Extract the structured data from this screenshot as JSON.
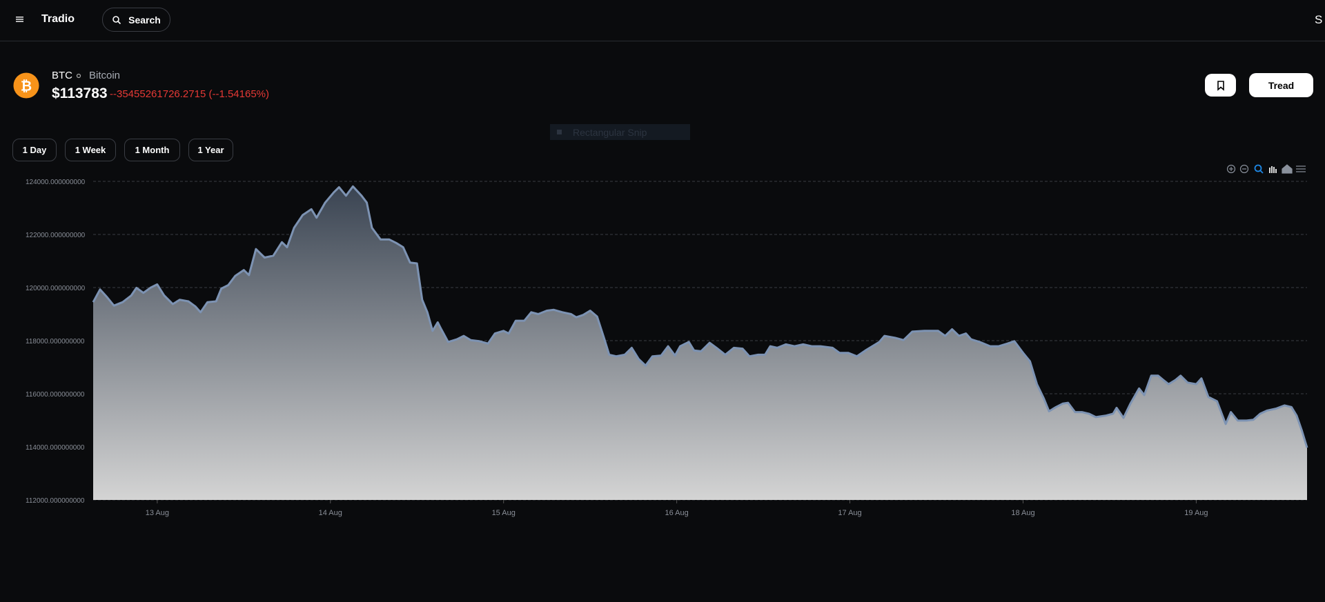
{
  "header": {
    "brand": "Tradio",
    "search": "Search",
    "user_initial": "S"
  },
  "asset": {
    "symbol": "BTC",
    "name": "Bitcoin",
    "price": "$113783",
    "change": "--35455261726.2715 (--1.54165%)",
    "action": "Tread"
  },
  "ranges": [
    "1 Day",
    "1 Week",
    "1 Month",
    "1 Year"
  ],
  "overlay": "Rectangular Snip",
  "chart_data": {
    "type": "area",
    "color": "#7d93b3",
    "grid": true,
    "xlim": [
      12.63,
      19.64
    ],
    "ylim": [
      112000,
      124000
    ],
    "xticks": [
      {
        "value": 13,
        "label": "13 Aug"
      },
      {
        "value": 14,
        "label": "14 Aug"
      },
      {
        "value": 15,
        "label": "15 Aug"
      },
      {
        "value": 16,
        "label": "16 Aug"
      },
      {
        "value": 17,
        "label": "17 Aug"
      },
      {
        "value": 18,
        "label": "18 Aug"
      },
      {
        "value": 19,
        "label": "19 Aug"
      }
    ],
    "yticks": [
      {
        "value": 112000,
        "label": "112000.000000000"
      },
      {
        "value": 114000,
        "label": "114000.000000000"
      },
      {
        "value": 116000,
        "label": "116000.000000000"
      },
      {
        "value": 118000,
        "label": "118000.000000000"
      },
      {
        "value": 120000,
        "label": "120000.000000000"
      },
      {
        "value": 122000,
        "label": "122000.000000000"
      },
      {
        "value": 124000,
        "label": "124000.000000000"
      }
    ],
    "x": [
      12.63,
      12.67,
      12.71,
      12.75,
      12.8,
      12.85,
      12.88,
      12.92,
      12.96,
      13.0,
      13.04,
      13.09,
      13.13,
      13.18,
      13.22,
      13.25,
      13.29,
      13.34,
      13.37,
      13.41,
      13.45,
      13.5,
      13.53,
      13.57,
      13.62,
      13.67,
      13.72,
      13.75,
      13.79,
      13.84,
      13.89,
      13.92,
      13.97,
      14.02,
      14.05,
      14.09,
      14.13,
      14.18,
      14.21,
      14.24,
      14.29,
      14.34,
      14.38,
      14.42,
      14.46,
      14.5,
      14.53,
      14.56,
      14.59,
      14.62,
      14.64,
      14.68,
      14.73,
      14.77,
      14.81,
      14.86,
      14.91,
      14.95,
      15.0,
      15.03,
      15.07,
      15.12,
      15.16,
      15.2,
      15.25,
      15.29,
      15.34,
      15.39,
      15.42,
      15.46,
      15.5,
      15.54,
      15.58,
      15.61,
      15.65,
      15.7,
      15.74,
      15.78,
      15.82,
      15.86,
      15.91,
      15.95,
      15.99,
      16.02,
      16.07,
      16.1,
      16.14,
      16.19,
      16.23,
      16.28,
      16.33,
      16.38,
      16.42,
      16.47,
      16.51,
      16.54,
      16.58,
      16.63,
      16.68,
      16.73,
      16.78,
      16.83,
      16.9,
      16.94,
      16.99,
      17.04,
      17.09,
      17.17,
      17.2,
      17.26,
      17.31,
      17.36,
      17.43,
      17.51,
      17.55,
      17.59,
      17.63,
      17.67,
      17.7,
      17.75,
      17.81,
      17.86,
      17.91,
      17.95,
      18.0,
      18.04,
      18.08,
      18.12,
      18.15,
      18.19,
      18.23,
      18.26,
      18.3,
      18.34,
      18.38,
      18.42,
      18.48,
      18.52,
      18.54,
      18.58,
      18.62,
      18.67,
      18.7,
      18.74,
      18.78,
      18.81,
      18.84,
      18.88,
      18.91,
      18.95,
      19.0,
      19.03,
      19.07,
      19.12,
      19.17,
      19.2,
      19.24,
      19.29,
      19.33,
      19.37,
      19.41,
      19.46,
      19.51,
      19.55,
      19.58,
      19.61,
      19.64
    ],
    "values": [
      119450,
      119930,
      119640,
      119320,
      119450,
      119700,
      119990,
      119800,
      119990,
      120120,
      119700,
      119380,
      119540,
      119480,
      119290,
      119070,
      119450,
      119480,
      119960,
      120090,
      120440,
      120660,
      120470,
      121450,
      121130,
      121200,
      121710,
      121520,
      122250,
      122730,
      122950,
      122630,
      123200,
      123590,
      123780,
      123460,
      123810,
      123460,
      123200,
      122250,
      121810,
      121810,
      121680,
      121520,
      120940,
      120910,
      119540,
      119070,
      118370,
      118690,
      118430,
      117950,
      118050,
      118180,
      118020,
      117980,
      117890,
      118270,
      118370,
      118270,
      118750,
      118750,
      119070,
      119000,
      119130,
      119160,
      119070,
      119000,
      118880,
      118970,
      119130,
      118910,
      118110,
      117470,
      117410,
      117470,
      117730,
      117310,
      117060,
      117410,
      117440,
      117790,
      117440,
      117790,
      117950,
      117630,
      117600,
      117920,
      117730,
      117470,
      117730,
      117700,
      117410,
      117470,
      117470,
      117790,
      117730,
      117860,
      117790,
      117860,
      117790,
      117790,
      117730,
      117540,
      117540,
      117410,
      117630,
      117950,
      118180,
      118110,
      118020,
      118340,
      118370,
      118370,
      118180,
      118430,
      118180,
      118270,
      118050,
      117950,
      117790,
      117790,
      117890,
      117980,
      117540,
      117220,
      116360,
      115820,
      115340,
      115500,
      115630,
      115660,
      115310,
      115310,
      115250,
      115120,
      115180,
      115250,
      115470,
      115090,
      115630,
      116200,
      115950,
      116680,
      116680,
      116520,
      116360,
      116520,
      116680,
      116420,
      116360,
      116580,
      115880,
      115720,
      114860,
      115310,
      114990,
      114990,
      115020,
      115250,
      115370,
      115440,
      115560,
      115500,
      115180,
      114610,
      113970
    ]
  }
}
